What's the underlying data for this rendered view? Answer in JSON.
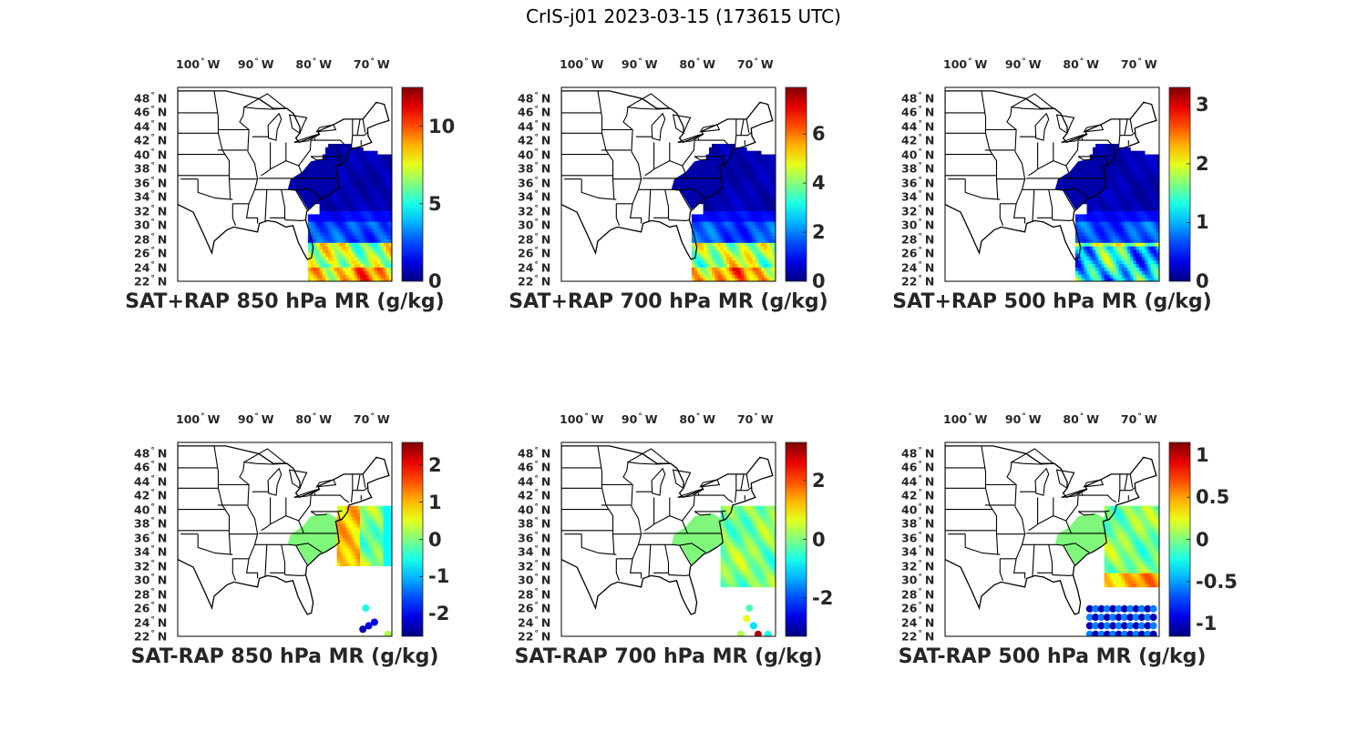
{
  "figure": {
    "title": "CrIS-j01 2023-03-15 (173615 UTC)"
  },
  "colors": {
    "colormap": "jet",
    "land_outline": "#000000",
    "background": "#ffffff"
  },
  "lon_ticks": [
    {
      "value": -100,
      "label": "100",
      "hemi": "W"
    },
    {
      "value": -90,
      "label": "90",
      "hemi": "W"
    },
    {
      "value": -80,
      "label": "80",
      "hemi": "W"
    },
    {
      "value": -70,
      "label": "70",
      "hemi": "W"
    }
  ],
  "lat_ticks": [
    {
      "value": 48,
      "label": "48",
      "hemi": "N"
    },
    {
      "value": 46,
      "label": "46",
      "hemi": "N"
    },
    {
      "value": 44,
      "label": "44",
      "hemi": "N"
    },
    {
      "value": 42,
      "label": "42",
      "hemi": "N"
    },
    {
      "value": 40,
      "label": "40",
      "hemi": "N"
    },
    {
      "value": 38,
      "label": "38",
      "hemi": "N"
    },
    {
      "value": 36,
      "label": "36",
      "hemi": "N"
    },
    {
      "value": 34,
      "label": "34",
      "hemi": "N"
    },
    {
      "value": 32,
      "label": "32",
      "hemi": "N"
    },
    {
      "value": 30,
      "label": "30",
      "hemi": "N"
    },
    {
      "value": 28,
      "label": "28",
      "hemi": "N"
    },
    {
      "value": 26,
      "label": "26",
      "hemi": "N"
    },
    {
      "value": 24,
      "label": "24",
      "hemi": "N"
    },
    {
      "value": 22,
      "label": "22",
      "hemi": "N"
    }
  ],
  "chart_data": [
    {
      "type": "heatmap",
      "title": "SAT+RAP 850 hPa MR (g/kg)",
      "colorbar": {
        "range": [
          0,
          12.5
        ],
        "ticks": [
          {
            "value": 0,
            "label": "0"
          },
          {
            "value": 5,
            "label": "5"
          },
          {
            "value": 10,
            "label": "10"
          }
        ]
      }
    },
    {
      "type": "heatmap",
      "title": "SAT+RAP 700 hPa MR (g/kg)",
      "colorbar": {
        "range": [
          0,
          7.9
        ],
        "ticks": [
          {
            "value": 0,
            "label": "0"
          },
          {
            "value": 2,
            "label": "2"
          },
          {
            "value": 4,
            "label": "4"
          },
          {
            "value": 6,
            "label": "6"
          }
        ]
      }
    },
    {
      "type": "heatmap",
      "title": "SAT+RAP 500 hPa MR (g/kg)",
      "colorbar": {
        "range": [
          0,
          3.3
        ],
        "ticks": [
          {
            "value": 0,
            "label": "0"
          },
          {
            "value": 1,
            "label": "1"
          },
          {
            "value": 2,
            "label": "2"
          },
          {
            "value": 3,
            "label": "3"
          }
        ]
      }
    },
    {
      "type": "heatmap",
      "title": "SAT-RAP 850 hPa MR (g/kg)",
      "colorbar": {
        "range": [
          -2.6,
          2.6
        ],
        "ticks": [
          {
            "value": -2,
            "label": "-2"
          },
          {
            "value": -1,
            "label": "-1"
          },
          {
            "value": 0,
            "label": "0"
          },
          {
            "value": 1,
            "label": "1"
          },
          {
            "value": 2,
            "label": "2"
          }
        ]
      }
    },
    {
      "type": "heatmap",
      "title": "SAT-RAP 700 hPa MR (g/kg)",
      "colorbar": {
        "range": [
          -3.3,
          3.3
        ],
        "ticks": [
          {
            "value": -2,
            "label": "-2"
          },
          {
            "value": 0,
            "label": "0"
          },
          {
            "value": 2,
            "label": "2"
          }
        ]
      }
    },
    {
      "type": "heatmap",
      "title": "SAT-RAP 500 hPa MR (g/kg)",
      "colorbar": {
        "range": [
          -1.15,
          1.15
        ],
        "ticks": [
          {
            "value": -1,
            "label": "-1"
          },
          {
            "value": -0.5,
            "label": "-0.5"
          },
          {
            "value": 0,
            "label": "0"
          },
          {
            "value": 0.5,
            "label": "0.5"
          },
          {
            "value": 1,
            "label": "1"
          }
        ]
      }
    }
  ]
}
